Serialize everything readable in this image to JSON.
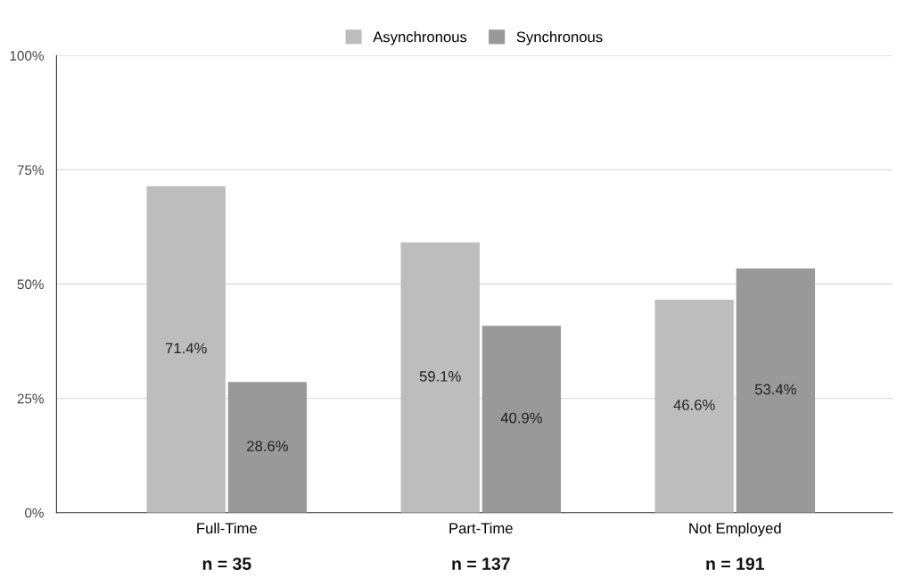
{
  "chart_data": {
    "type": "bar",
    "categories": [
      "Full-Time",
      "Part-Time",
      "Not Employed"
    ],
    "series": [
      {
        "name": "Asynchronous",
        "color": "#bdbdbd",
        "values": [
          71.4,
          59.1,
          46.6
        ],
        "value_labels": [
          "71.4%",
          "59.1%",
          "46.6%"
        ]
      },
      {
        "name": "Synchronous",
        "color": "#999999",
        "values": [
          28.6,
          40.9,
          53.4
        ],
        "value_labels": [
          "28.6%",
          "40.9%",
          "53.4%"
        ]
      }
    ],
    "ylim": [
      0,
      100
    ],
    "yticks": [
      {
        "value": 0,
        "label": "0%"
      },
      {
        "value": 25,
        "label": "25%"
      },
      {
        "value": 50,
        "label": "50%"
      },
      {
        "value": 75,
        "label": "75%"
      },
      {
        "value": 100,
        "label": "100%"
      }
    ],
    "grid": "y",
    "legend": "top",
    "annotations": [
      "n = 35",
      "n = 137",
      "n = 191"
    ]
  }
}
